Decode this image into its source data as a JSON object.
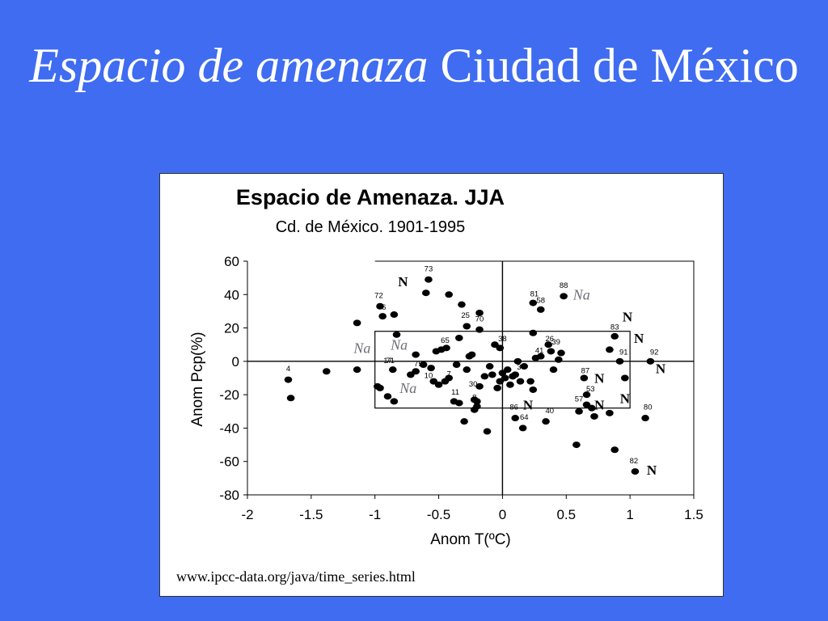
{
  "slide": {
    "title_italic": "Espacio de amenaza",
    "title_rest": " Ciudad de México"
  },
  "chart_data": {
    "type": "scatter",
    "title": "Espacio de Amenaza. JJA",
    "subtitle": "Cd. de México. 1901-1995",
    "xlabel": "Anom T(ºC)",
    "ylabel": "Anom Pcp(%)",
    "xlim": [
      -2,
      1.5
    ],
    "ylim": [
      -80,
      60
    ],
    "x_ticks": [
      "-2",
      "-1.5",
      "-1",
      "-0.5",
      "0",
      "0.5",
      "1",
      "1.5"
    ],
    "y_ticks": [
      "60",
      "40",
      "20",
      "0",
      "-20",
      "-40",
      "-60",
      "-80"
    ],
    "grid": false,
    "points": [
      [
        -1.68,
        -11
      ],
      [
        -1.66,
        -22
      ],
      [
        -1.38,
        -6
      ],
      [
        -1.14,
        23
      ],
      [
        -1.14,
        -5
      ],
      [
        -0.96,
        -16
      ],
      [
        -0.96,
        33
      ],
      [
        -0.94,
        27
      ],
      [
        -0.9,
        -21
      ],
      [
        -0.86,
        -5
      ],
      [
        -0.85,
        28
      ],
      [
        -0.85,
        -24
      ],
      [
        -0.83,
        16
      ],
      [
        -0.72,
        -8
      ],
      [
        -0.68,
        -6
      ],
      [
        -0.68,
        4
      ],
      [
        -0.62,
        -2
      ],
      [
        -0.6,
        41
      ],
      [
        -0.58,
        49
      ],
      [
        -0.56,
        -4
      ],
      [
        -0.54,
        -12
      ],
      [
        -0.52,
        6
      ],
      [
        -0.5,
        -14
      ],
      [
        -0.48,
        7
      ],
      [
        -0.45,
        -12
      ],
      [
        -0.44,
        8
      ],
      [
        -0.42,
        -10
      ],
      [
        -0.42,
        40
      ],
      [
        -0.38,
        -24
      ],
      [
        -0.36,
        -2
      ],
      [
        -0.34,
        -25
      ],
      [
        -0.34,
        14
      ],
      [
        -0.32,
        34
      ],
      [
        -0.3,
        -36
      ],
      [
        -0.28,
        21
      ],
      [
        -0.28,
        -5
      ],
      [
        -0.26,
        3
      ],
      [
        -0.24,
        4
      ],
      [
        -0.22,
        -29
      ],
      [
        -0.22,
        -23
      ],
      [
        -0.2,
        -27
      ],
      [
        -0.2,
        -24
      ],
      [
        -0.18,
        -15
      ],
      [
        -0.18,
        19
      ],
      [
        -0.18,
        29
      ],
      [
        -0.14,
        -9
      ],
      [
        -0.12,
        -42
      ],
      [
        -0.1,
        -3
      ],
      [
        -0.08,
        -8
      ],
      [
        -0.06,
        10
      ],
      [
        -0.04,
        -16
      ],
      [
        -0.02,
        -12
      ],
      [
        -0.02,
        8
      ],
      [
        0.0,
        -7
      ],
      [
        0.02,
        -10
      ],
      [
        0.04,
        -5
      ],
      [
        0.06,
        -14
      ],
      [
        0.08,
        -9
      ],
      [
        0.1,
        -8
      ],
      [
        0.1,
        -34
      ],
      [
        0.12,
        0
      ],
      [
        0.14,
        -12
      ],
      [
        0.16,
        -40
      ],
      [
        0.17,
        -3
      ],
      [
        0.22,
        -12
      ],
      [
        0.24,
        -17
      ],
      [
        0.24,
        17
      ],
      [
        0.24,
        35
      ],
      [
        0.26,
        2
      ],
      [
        0.3,
        3
      ],
      [
        0.3,
        31
      ],
      [
        0.34,
        -36
      ],
      [
        0.36,
        10
      ],
      [
        0.38,
        6
      ],
      [
        0.4,
        -5
      ],
      [
        0.44,
        1
      ],
      [
        0.46,
        5
      ],
      [
        0.48,
        39
      ],
      [
        0.58,
        -50
      ],
      [
        0.6,
        -30
      ],
      [
        0.64,
        -10
      ],
      [
        0.66,
        -20
      ],
      [
        0.66,
        -26
      ],
      [
        0.7,
        -28
      ],
      [
        0.72,
        -33
      ],
      [
        0.84,
        -31
      ],
      [
        0.84,
        7
      ],
      [
        0.88,
        -53
      ],
      [
        0.88,
        15
      ],
      [
        0.92,
        0
      ],
      [
        0.96,
        -10
      ],
      [
        1.04,
        -66
      ],
      [
        1.12,
        -34
      ],
      [
        1.16,
        0
      ],
      [
        -0.98,
        -15
      ]
    ],
    "point_labels": [
      {
        "text": "4",
        "x": -1.68,
        "y": -6
      },
      {
        "text": "73",
        "x": -0.58,
        "y": 54
      },
      {
        "text": "72",
        "x": -0.97,
        "y": 38
      },
      {
        "text": "6",
        "x": -0.93,
        "y": 31
      },
      {
        "text": "71",
        "x": -0.88,
        "y": -1
      },
      {
        "text": "75",
        "x": -0.66,
        "y": -3
      },
      {
        "text": "10",
        "x": -0.58,
        "y": -10
      },
      {
        "text": "17",
        "x": -0.9,
        "y": -1
      },
      {
        "text": "7",
        "x": -0.42,
        "y": -9
      },
      {
        "text": "11",
        "x": -0.37,
        "y": -20
      },
      {
        "text": "65",
        "x": -0.45,
        "y": 11
      },
      {
        "text": "25",
        "x": -0.29,
        "y": 26
      },
      {
        "text": "70",
        "x": -0.18,
        "y": 24
      },
      {
        "text": "30",
        "x": -0.23,
        "y": -15
      },
      {
        "text": "8",
        "x": -0.22,
        "y": -23
      },
      {
        "text": "38",
        "x": 0.0,
        "y": 12
      },
      {
        "text": "3",
        "x": 0.13,
        "y": -5
      },
      {
        "text": "41",
        "x": 0.29,
        "y": 5
      },
      {
        "text": "26",
        "x": 0.37,
        "y": 12
      },
      {
        "text": "39",
        "x": 0.42,
        "y": 10
      },
      {
        "text": "81",
        "x": 0.25,
        "y": 39
      },
      {
        "text": "58",
        "x": 0.3,
        "y": 35
      },
      {
        "text": "88",
        "x": 0.48,
        "y": 44
      },
      {
        "text": "83",
        "x": 0.88,
        "y": 19
      },
      {
        "text": "91",
        "x": 0.95,
        "y": 4
      },
      {
        "text": "92",
        "x": 1.19,
        "y": 4
      },
      {
        "text": "87",
        "x": 0.65,
        "y": -7
      },
      {
        "text": "53",
        "x": 0.69,
        "y": -18
      },
      {
        "text": "57",
        "x": 0.6,
        "y": -24
      },
      {
        "text": "86",
        "x": 0.09,
        "y": -29
      },
      {
        "text": "64",
        "x": 0.17,
        "y": -35
      },
      {
        "text": "40",
        "x": 0.37,
        "y": -31
      },
      {
        "text": "80",
        "x": 1.14,
        "y": -29
      },
      {
        "text": "82",
        "x": 1.03,
        "y": -61
      }
    ],
    "annotations": [
      {
        "text": "N",
        "kind": "N",
        "x": -0.78,
        "y": 45
      },
      {
        "text": "N",
        "kind": "N",
        "x": 0.98,
        "y": 24
      },
      {
        "text": "N",
        "kind": "N",
        "x": 1.07,
        "y": 11
      },
      {
        "text": "N",
        "kind": "N",
        "x": 1.24,
        "y": -7
      },
      {
        "text": "N",
        "kind": "N",
        "x": 0.76,
        "y": -13
      },
      {
        "text": "N",
        "kind": "N",
        "x": 0.96,
        "y": -25
      },
      {
        "text": "N",
        "kind": "N",
        "x": 0.76,
        "y": -29
      },
      {
        "text": "N",
        "kind": "N",
        "x": 0.2,
        "y": -29
      },
      {
        "text": "N",
        "kind": "N",
        "x": 1.17,
        "y": -68
      },
      {
        "text": "Na",
        "kind": "Na",
        "x": -1.1,
        "y": 5
      },
      {
        "text": "Na",
        "kind": "Na",
        "x": -0.81,
        "y": 7
      },
      {
        "text": "Na",
        "kind": "Na",
        "x": -0.74,
        "y": -19
      },
      {
        "text": "Na",
        "kind": "Na",
        "x": 0.62,
        "y": 37
      }
    ],
    "box_outer": {
      "x": [
        -2,
        1.5
      ],
      "y": [
        -80,
        60
      ]
    },
    "box_inner": {
      "x": [
        -1,
        1
      ],
      "y": [
        -28,
        18
      ]
    },
    "region_outer": {
      "x": [
        -1,
        1.5
      ],
      "y": [
        -80,
        60
      ]
    }
  },
  "source_text": "www.ipcc-data.org/java/time_series.html"
}
